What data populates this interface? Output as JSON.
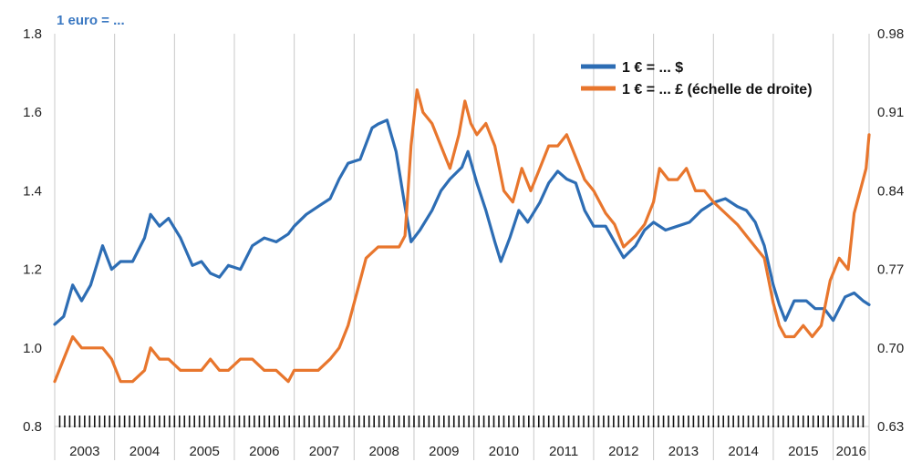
{
  "chart_data": {
    "type": "line",
    "title": "1 euro = ...",
    "title_color": "#3a78c2",
    "x_categories": [
      "2003",
      "2004",
      "2005",
      "2006",
      "2007",
      "2008",
      "2009",
      "2010",
      "2011",
      "2012",
      "2013",
      "2014",
      "2015",
      "2016"
    ],
    "xlim": [
      2003.0,
      2016.6
    ],
    "y_left": {
      "ticks": [
        "0.8",
        "1.0",
        "1.2",
        "1.4",
        "1.6",
        "1.8"
      ],
      "lim": [
        0.8,
        1.8
      ]
    },
    "y_right": {
      "ticks": [
        "0.63",
        "0.70",
        "0.77",
        "0.84",
        "0.91",
        "0.98"
      ],
      "lim": [
        0.63,
        0.98
      ]
    },
    "grid": "vertical",
    "legend_position": "top-right",
    "series": [
      {
        "name": "1 € = ... $",
        "axis": "left",
        "color": "#2d6db4",
        "points": [
          [
            2003.0,
            1.06
          ],
          [
            2003.15,
            1.08
          ],
          [
            2003.3,
            1.16
          ],
          [
            2003.45,
            1.12
          ],
          [
            2003.6,
            1.16
          ],
          [
            2003.8,
            1.26
          ],
          [
            2003.95,
            1.2
          ],
          [
            2004.1,
            1.22
          ],
          [
            2004.3,
            1.22
          ],
          [
            2004.5,
            1.28
          ],
          [
            2004.6,
            1.34
          ],
          [
            2004.75,
            1.31
          ],
          [
            2004.9,
            1.33
          ],
          [
            2005.1,
            1.28
          ],
          [
            2005.3,
            1.21
          ],
          [
            2005.45,
            1.22
          ],
          [
            2005.6,
            1.19
          ],
          [
            2005.75,
            1.18
          ],
          [
            2005.9,
            1.21
          ],
          [
            2006.1,
            1.2
          ],
          [
            2006.3,
            1.26
          ],
          [
            2006.5,
            1.28
          ],
          [
            2006.7,
            1.27
          ],
          [
            2006.9,
            1.29
          ],
          [
            2007.0,
            1.31
          ],
          [
            2007.2,
            1.34
          ],
          [
            2007.4,
            1.36
          ],
          [
            2007.6,
            1.38
          ],
          [
            2007.75,
            1.43
          ],
          [
            2007.9,
            1.47
          ],
          [
            2008.1,
            1.48
          ],
          [
            2008.3,
            1.56
          ],
          [
            2008.4,
            1.57
          ],
          [
            2008.55,
            1.58
          ],
          [
            2008.7,
            1.5
          ],
          [
            2008.85,
            1.36
          ],
          [
            2008.95,
            1.27
          ],
          [
            2009.1,
            1.3
          ],
          [
            2009.3,
            1.35
          ],
          [
            2009.45,
            1.4
          ],
          [
            2009.6,
            1.43
          ],
          [
            2009.8,
            1.46
          ],
          [
            2009.9,
            1.5
          ],
          [
            2010.05,
            1.42
          ],
          [
            2010.2,
            1.35
          ],
          [
            2010.35,
            1.27
          ],
          [
            2010.45,
            1.22
          ],
          [
            2010.6,
            1.28
          ],
          [
            2010.75,
            1.35
          ],
          [
            2010.9,
            1.32
          ],
          [
            2011.1,
            1.37
          ],
          [
            2011.25,
            1.42
          ],
          [
            2011.4,
            1.45
          ],
          [
            2011.55,
            1.43
          ],
          [
            2011.7,
            1.42
          ],
          [
            2011.85,
            1.35
          ],
          [
            2012.0,
            1.31
          ],
          [
            2012.2,
            1.31
          ],
          [
            2012.35,
            1.27
          ],
          [
            2012.5,
            1.23
          ],
          [
            2012.7,
            1.26
          ],
          [
            2012.85,
            1.3
          ],
          [
            2013.0,
            1.32
          ],
          [
            2013.2,
            1.3
          ],
          [
            2013.4,
            1.31
          ],
          [
            2013.6,
            1.32
          ],
          [
            2013.8,
            1.35
          ],
          [
            2014.0,
            1.37
          ],
          [
            2014.2,
            1.38
          ],
          [
            2014.4,
            1.36
          ],
          [
            2014.55,
            1.35
          ],
          [
            2014.7,
            1.32
          ],
          [
            2014.85,
            1.26
          ],
          [
            2015.0,
            1.16
          ],
          [
            2015.1,
            1.11
          ],
          [
            2015.2,
            1.07
          ],
          [
            2015.35,
            1.12
          ],
          [
            2015.55,
            1.12
          ],
          [
            2015.7,
            1.1
          ],
          [
            2015.85,
            1.1
          ],
          [
            2016.0,
            1.07
          ],
          [
            2016.2,
            1.13
          ],
          [
            2016.35,
            1.14
          ],
          [
            2016.5,
            1.12
          ],
          [
            2016.6,
            1.11
          ]
        ]
      },
      {
        "name": "1 € = ... £ (échelle de droite)",
        "axis": "right",
        "color": "#e8762d",
        "points": [
          [
            2003.0,
            0.67
          ],
          [
            2003.15,
            0.69
          ],
          [
            2003.3,
            0.71
          ],
          [
            2003.45,
            0.7
          ],
          [
            2003.6,
            0.7
          ],
          [
            2003.8,
            0.7
          ],
          [
            2003.95,
            0.69
          ],
          [
            2004.1,
            0.67
          ],
          [
            2004.3,
            0.67
          ],
          [
            2004.5,
            0.68
          ],
          [
            2004.6,
            0.7
          ],
          [
            2004.75,
            0.69
          ],
          [
            2004.9,
            0.69
          ],
          [
            2005.1,
            0.68
          ],
          [
            2005.3,
            0.68
          ],
          [
            2005.45,
            0.68
          ],
          [
            2005.6,
            0.69
          ],
          [
            2005.75,
            0.68
          ],
          [
            2005.9,
            0.68
          ],
          [
            2006.1,
            0.69
          ],
          [
            2006.3,
            0.69
          ],
          [
            2006.5,
            0.68
          ],
          [
            2006.7,
            0.68
          ],
          [
            2006.9,
            0.67
          ],
          [
            2007.0,
            0.68
          ],
          [
            2007.2,
            0.68
          ],
          [
            2007.4,
            0.68
          ],
          [
            2007.6,
            0.69
          ],
          [
            2007.75,
            0.7
          ],
          [
            2007.9,
            0.72
          ],
          [
            2008.0,
            0.74
          ],
          [
            2008.1,
            0.76
          ],
          [
            2008.2,
            0.78
          ],
          [
            2008.4,
            0.79
          ],
          [
            2008.6,
            0.79
          ],
          [
            2008.75,
            0.79
          ],
          [
            2008.85,
            0.8
          ],
          [
            2008.95,
            0.88
          ],
          [
            2009.05,
            0.93
          ],
          [
            2009.15,
            0.91
          ],
          [
            2009.3,
            0.9
          ],
          [
            2009.45,
            0.88
          ],
          [
            2009.6,
            0.86
          ],
          [
            2009.75,
            0.89
          ],
          [
            2009.85,
            0.92
          ],
          [
            2009.95,
            0.9
          ],
          [
            2010.05,
            0.89
          ],
          [
            2010.2,
            0.9
          ],
          [
            2010.35,
            0.88
          ],
          [
            2010.5,
            0.84
          ],
          [
            2010.65,
            0.83
          ],
          [
            2010.8,
            0.86
          ],
          [
            2010.95,
            0.84
          ],
          [
            2011.1,
            0.86
          ],
          [
            2011.25,
            0.88
          ],
          [
            2011.4,
            0.88
          ],
          [
            2011.55,
            0.89
          ],
          [
            2011.7,
            0.87
          ],
          [
            2011.85,
            0.85
          ],
          [
            2012.0,
            0.84
          ],
          [
            2012.2,
            0.82
          ],
          [
            2012.35,
            0.81
          ],
          [
            2012.5,
            0.79
          ],
          [
            2012.7,
            0.8
          ],
          [
            2012.85,
            0.81
          ],
          [
            2013.0,
            0.83
          ],
          [
            2013.1,
            0.86
          ],
          [
            2013.25,
            0.85
          ],
          [
            2013.4,
            0.85
          ],
          [
            2013.55,
            0.86
          ],
          [
            2013.7,
            0.84
          ],
          [
            2013.85,
            0.84
          ],
          [
            2014.0,
            0.83
          ],
          [
            2014.2,
            0.82
          ],
          [
            2014.4,
            0.81
          ],
          [
            2014.55,
            0.8
          ],
          [
            2014.7,
            0.79
          ],
          [
            2014.85,
            0.78
          ],
          [
            2015.0,
            0.74
          ],
          [
            2015.1,
            0.72
          ],
          [
            2015.2,
            0.71
          ],
          [
            2015.35,
            0.71
          ],
          [
            2015.5,
            0.72
          ],
          [
            2015.65,
            0.71
          ],
          [
            2015.8,
            0.72
          ],
          [
            2015.95,
            0.76
          ],
          [
            2016.1,
            0.78
          ],
          [
            2016.25,
            0.77
          ],
          [
            2016.35,
            0.82
          ],
          [
            2016.45,
            0.84
          ],
          [
            2016.55,
            0.86
          ],
          [
            2016.6,
            0.89
          ]
        ]
      }
    ]
  }
}
